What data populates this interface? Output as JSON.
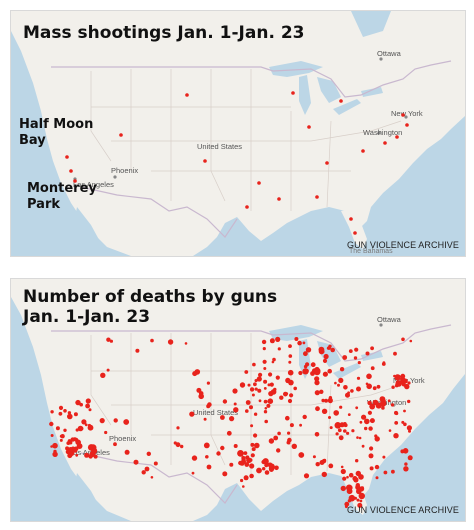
{
  "colors": {
    "land": "#f2f0eb",
    "water": "#bcd6e6",
    "border": "#c9b8cf",
    "state_line": "#d8cfc9",
    "dot": "#e8231c"
  },
  "panels": [
    {
      "title_lines": [
        "Mass shootings Jan. 1-Jan. 23"
      ],
      "callouts": [
        "Half Moon\nBay",
        "Monterey\nPark"
      ],
      "credit": "GUN VIOLENCE ARCHIVE",
      "labels": {
        "ottawa": "Ottawa",
        "new_york": "New York",
        "washington": "Washington",
        "united_states": "United States",
        "phoenix": "Phoenix",
        "los_angeles": "Los Angeles",
        "bahamas": "The Bahamas"
      }
    },
    {
      "title_lines": [
        "Number of deaths by guns",
        "Jan. 1-Jan. 23"
      ],
      "credit": "GUN VIOLENCE ARCHIVE",
      "labels": {
        "ottawa": "Ottawa",
        "new_york": "New York",
        "washington": "Washington",
        "united_states": "United States",
        "phoenix": "Phoenix",
        "los_angeles": "Los Angeles"
      }
    }
  ]
}
